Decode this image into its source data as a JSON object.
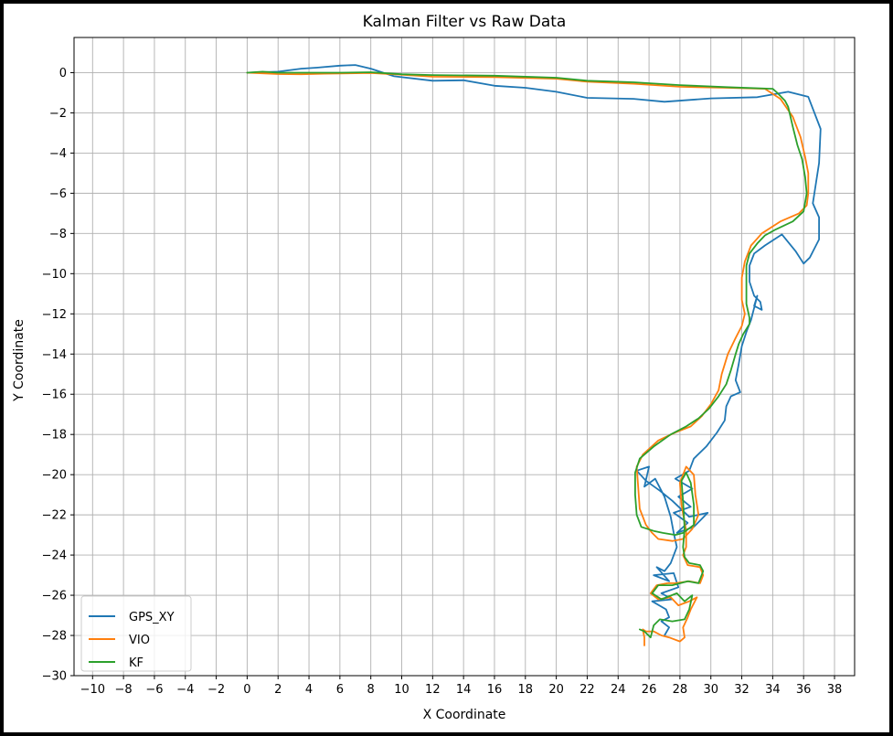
{
  "chart_data": {
    "type": "line",
    "title": "Kalman Filter vs Raw Data",
    "xlabel": "X Coordinate",
    "ylabel": "Y Coordinate",
    "xlim": [
      -11.2,
      39.3
    ],
    "ylim": [
      -30,
      1.75
    ],
    "grid": true,
    "legend_position": "lower-left",
    "x_ticks": [
      -10,
      -8,
      -6,
      -4,
      -2,
      0,
      2,
      4,
      6,
      8,
      10,
      12,
      14,
      16,
      18,
      20,
      22,
      24,
      26,
      28,
      30,
      32,
      34,
      36,
      38
    ],
    "y_ticks": [
      0,
      -2,
      -4,
      -6,
      -8,
      -10,
      -12,
      -14,
      -16,
      -18,
      -20,
      -22,
      -24,
      -26,
      -28,
      -30
    ],
    "series": [
      {
        "name": "GPS_XY",
        "color": "#1f77b4",
        "points": [
          [
            0,
            0
          ],
          [
            2,
            0.05
          ],
          [
            3.5,
            0.2
          ],
          [
            4.5,
            0.25
          ],
          [
            6,
            0.35
          ],
          [
            7,
            0.38
          ],
          [
            8,
            0.2
          ],
          [
            9,
            -0.05
          ],
          [
            9.5,
            -0.18
          ],
          [
            12,
            -0.4
          ],
          [
            14,
            -0.38
          ],
          [
            16,
            -0.65
          ],
          [
            18,
            -0.75
          ],
          [
            20,
            -0.95
          ],
          [
            22,
            -1.25
          ],
          [
            25,
            -1.3
          ],
          [
            27,
            -1.45
          ],
          [
            30,
            -1.28
          ],
          [
            33,
            -1.22
          ],
          [
            35,
            -0.95
          ],
          [
            36.3,
            -1.2
          ],
          [
            37.1,
            -2.8
          ],
          [
            37,
            -4.5
          ],
          [
            36.6,
            -6.5
          ],
          [
            37,
            -7.2
          ],
          [
            37,
            -8.3
          ],
          [
            36.4,
            -9.2
          ],
          [
            36,
            -9.5
          ],
          [
            35.5,
            -8.9
          ],
          [
            34.6,
            -8.05
          ],
          [
            33.5,
            -8.6
          ],
          [
            32.8,
            -9.0
          ],
          [
            32.5,
            -9.6
          ],
          [
            32.5,
            -10.4
          ],
          [
            32.8,
            -11.1
          ],
          [
            33.2,
            -11.4
          ],
          [
            33.3,
            -11.8
          ],
          [
            32.8,
            -11.6
          ],
          [
            33,
            -11.1
          ],
          [
            32.6,
            -12.3
          ],
          [
            32.3,
            -12.9
          ],
          [
            32,
            -13.6
          ],
          [
            31.8,
            -14.5
          ],
          [
            31.6,
            -15.3
          ],
          [
            31.9,
            -15.9
          ],
          [
            31.3,
            -16.1
          ],
          [
            31,
            -16.6
          ],
          [
            30.9,
            -17.3
          ],
          [
            30.4,
            -17.9
          ],
          [
            29.7,
            -18.6
          ],
          [
            28.9,
            -19.2
          ],
          [
            28.6,
            -19.8
          ],
          [
            27.7,
            -20.2
          ],
          [
            28.8,
            -20.7
          ],
          [
            27.9,
            -21.1
          ],
          [
            28.7,
            -21.6
          ],
          [
            27.6,
            -21.9
          ],
          [
            28.5,
            -22.4
          ],
          [
            27.8,
            -22.9
          ],
          [
            28.9,
            -22.6
          ],
          [
            29.8,
            -21.9
          ],
          [
            28.6,
            -22.1
          ],
          [
            27.5,
            -21.3
          ],
          [
            26.7,
            -20.8
          ],
          [
            25.8,
            -20.3
          ],
          [
            25.2,
            -19.8
          ],
          [
            26.0,
            -19.6
          ],
          [
            25.7,
            -20.6
          ],
          [
            26.4,
            -20.2
          ],
          [
            27.0,
            -21.1
          ],
          [
            27.4,
            -22.1
          ],
          [
            27.6,
            -22.9
          ],
          [
            27.8,
            -23.6
          ],
          [
            27.4,
            -24.4
          ],
          [
            27.0,
            -24.8
          ],
          [
            26.5,
            -24.6
          ],
          [
            27.3,
            -25.3
          ],
          [
            26.3,
            -25.0
          ],
          [
            27.6,
            -24.9
          ],
          [
            27.9,
            -25.6
          ],
          [
            26.8,
            -25.9
          ],
          [
            27.5,
            -26.2
          ],
          [
            26.2,
            -26.3
          ],
          [
            27.1,
            -26.7
          ],
          [
            27.3,
            -27.1
          ],
          [
            26.8,
            -27.3
          ],
          [
            27.3,
            -27.6
          ],
          [
            27.0,
            -28.0
          ]
        ]
      },
      {
        "name": "VIO",
        "color": "#ff7f0e",
        "points": [
          [
            0,
            0
          ],
          [
            2,
            -0.07
          ],
          [
            3.5,
            -0.08
          ],
          [
            5,
            -0.05
          ],
          [
            8,
            -0.02
          ],
          [
            10,
            -0.1
          ],
          [
            12,
            -0.2
          ],
          [
            16,
            -0.22
          ],
          [
            20,
            -0.3
          ],
          [
            22,
            -0.45
          ],
          [
            25,
            -0.55
          ],
          [
            28,
            -0.7
          ],
          [
            31,
            -0.75
          ],
          [
            33.5,
            -0.8
          ],
          [
            34.5,
            -1.3
          ],
          [
            35.3,
            -2.2
          ],
          [
            35.8,
            -3.2
          ],
          [
            36.1,
            -4.2
          ],
          [
            36.3,
            -5.0
          ],
          [
            36.3,
            -6.0
          ],
          [
            36.2,
            -6.6
          ],
          [
            35.7,
            -7.0
          ],
          [
            34.5,
            -7.4
          ],
          [
            33.3,
            -8.0
          ],
          [
            32.6,
            -8.6
          ],
          [
            32.2,
            -9.4
          ],
          [
            32.0,
            -10.2
          ],
          [
            32.0,
            -11.3
          ],
          [
            32.2,
            -12.0
          ],
          [
            32.0,
            -12.6
          ],
          [
            31.6,
            -13.2
          ],
          [
            31.1,
            -14.0
          ],
          [
            30.7,
            -15.0
          ],
          [
            30.5,
            -15.8
          ],
          [
            30.0,
            -16.5
          ],
          [
            29.4,
            -17.1
          ],
          [
            28.7,
            -17.6
          ],
          [
            27.7,
            -17.9
          ],
          [
            26.6,
            -18.3
          ],
          [
            25.6,
            -19.0
          ],
          [
            25.2,
            -19.6
          ],
          [
            25.3,
            -20.6
          ],
          [
            25.4,
            -21.7
          ],
          [
            25.8,
            -22.5
          ],
          [
            26.2,
            -22.9
          ],
          [
            26.6,
            -23.2
          ],
          [
            27.5,
            -23.3
          ],
          [
            28.2,
            -23.2
          ],
          [
            28.8,
            -22.7
          ],
          [
            29.2,
            -22.0
          ],
          [
            29.0,
            -21.0
          ],
          [
            28.9,
            -20.0
          ],
          [
            28.4,
            -19.6
          ],
          [
            28.0,
            -20.4
          ],
          [
            28.1,
            -21.5
          ],
          [
            28.4,
            -22.8
          ],
          [
            28.4,
            -23.6
          ],
          [
            28.2,
            -24.0
          ],
          [
            28.5,
            -24.5
          ],
          [
            29.3,
            -24.6
          ],
          [
            29.5,
            -25.0
          ],
          [
            29.3,
            -25.4
          ],
          [
            28.6,
            -25.3
          ],
          [
            27.7,
            -25.4
          ],
          [
            27.2,
            -25.4
          ],
          [
            26.5,
            -25.5
          ],
          [
            26.1,
            -25.9
          ],
          [
            26.6,
            -26.2
          ],
          [
            27.4,
            -26.1
          ],
          [
            27.9,
            -26.5
          ],
          [
            28.6,
            -26.3
          ],
          [
            29.1,
            -26.1
          ],
          [
            28.7,
            -26.7
          ],
          [
            28.5,
            -27.1
          ],
          [
            28.2,
            -27.6
          ],
          [
            28.3,
            -28.1
          ],
          [
            28.0,
            -28.3
          ],
          [
            27.3,
            -28.1
          ],
          [
            26.8,
            -28.0
          ],
          [
            26.3,
            -27.8
          ],
          [
            25.8,
            -27.8
          ],
          [
            25.6,
            -27.7
          ],
          [
            25.7,
            -28.1
          ],
          [
            25.7,
            -28.5
          ]
        ]
      },
      {
        "name": "KF",
        "color": "#2ca02c",
        "points": [
          [
            0,
            0
          ],
          [
            1,
            0.05
          ],
          [
            2,
            0.0
          ],
          [
            4,
            0.0
          ],
          [
            6,
            0.0
          ],
          [
            8,
            0.02
          ],
          [
            10,
            -0.08
          ],
          [
            12,
            -0.12
          ],
          [
            16,
            -0.15
          ],
          [
            20,
            -0.25
          ],
          [
            22,
            -0.4
          ],
          [
            25,
            -0.48
          ],
          [
            28,
            -0.62
          ],
          [
            31,
            -0.72
          ],
          [
            34,
            -0.8
          ],
          [
            34.3,
            -1.0
          ],
          [
            34.8,
            -1.4
          ],
          [
            35.0,
            -1.7
          ],
          [
            35.3,
            -2.7
          ],
          [
            35.6,
            -3.6
          ],
          [
            35.9,
            -4.3
          ],
          [
            36.1,
            -5.2
          ],
          [
            36.2,
            -6.0
          ],
          [
            36.0,
            -6.9
          ],
          [
            35.3,
            -7.4
          ],
          [
            34.2,
            -7.8
          ],
          [
            33.5,
            -8.1
          ],
          [
            33.0,
            -8.5
          ],
          [
            32.5,
            -9.0
          ],
          [
            32.3,
            -9.6
          ],
          [
            32.3,
            -10.6
          ],
          [
            32.3,
            -11.5
          ],
          [
            32.5,
            -12.2
          ],
          [
            32.5,
            -12.5
          ],
          [
            32.1,
            -13.0
          ],
          [
            31.8,
            -13.5
          ],
          [
            31.6,
            -14.0
          ],
          [
            31.3,
            -14.8
          ],
          [
            31.0,
            -15.5
          ],
          [
            30.5,
            -16.1
          ],
          [
            29.9,
            -16.7
          ],
          [
            29.2,
            -17.2
          ],
          [
            28.4,
            -17.6
          ],
          [
            27.4,
            -18.0
          ],
          [
            26.3,
            -18.6
          ],
          [
            25.4,
            -19.2
          ],
          [
            25.1,
            -19.9
          ],
          [
            25.1,
            -21.0
          ],
          [
            25.2,
            -22.0
          ],
          [
            25.5,
            -22.6
          ],
          [
            26.3,
            -22.8
          ],
          [
            26.9,
            -22.9
          ],
          [
            27.7,
            -23.0
          ],
          [
            28.2,
            -22.9
          ],
          [
            28.9,
            -22.5
          ],
          [
            28.9,
            -21.5
          ],
          [
            28.7,
            -20.4
          ],
          [
            28.4,
            -19.9
          ],
          [
            28.1,
            -20.3
          ],
          [
            28.2,
            -21.3
          ],
          [
            28.3,
            -22.7
          ],
          [
            28.2,
            -23.6
          ],
          [
            28.3,
            -24.1
          ],
          [
            28.6,
            -24.4
          ],
          [
            29.3,
            -24.5
          ],
          [
            29.5,
            -24.8
          ],
          [
            29.2,
            -25.4
          ],
          [
            28.5,
            -25.3
          ],
          [
            27.5,
            -25.5
          ],
          [
            26.6,
            -25.5
          ],
          [
            26.2,
            -25.9
          ],
          [
            26.8,
            -26.2
          ],
          [
            27.8,
            -25.9
          ],
          [
            28.3,
            -26.3
          ],
          [
            28.8,
            -26.0
          ],
          [
            28.6,
            -26.7
          ],
          [
            28.3,
            -27.2
          ],
          [
            27.5,
            -27.3
          ],
          [
            26.7,
            -27.2
          ],
          [
            26.3,
            -27.5
          ],
          [
            26.1,
            -28.1
          ],
          [
            25.7,
            -27.8
          ],
          [
            25.4,
            -27.7
          ]
        ]
      }
    ]
  }
}
